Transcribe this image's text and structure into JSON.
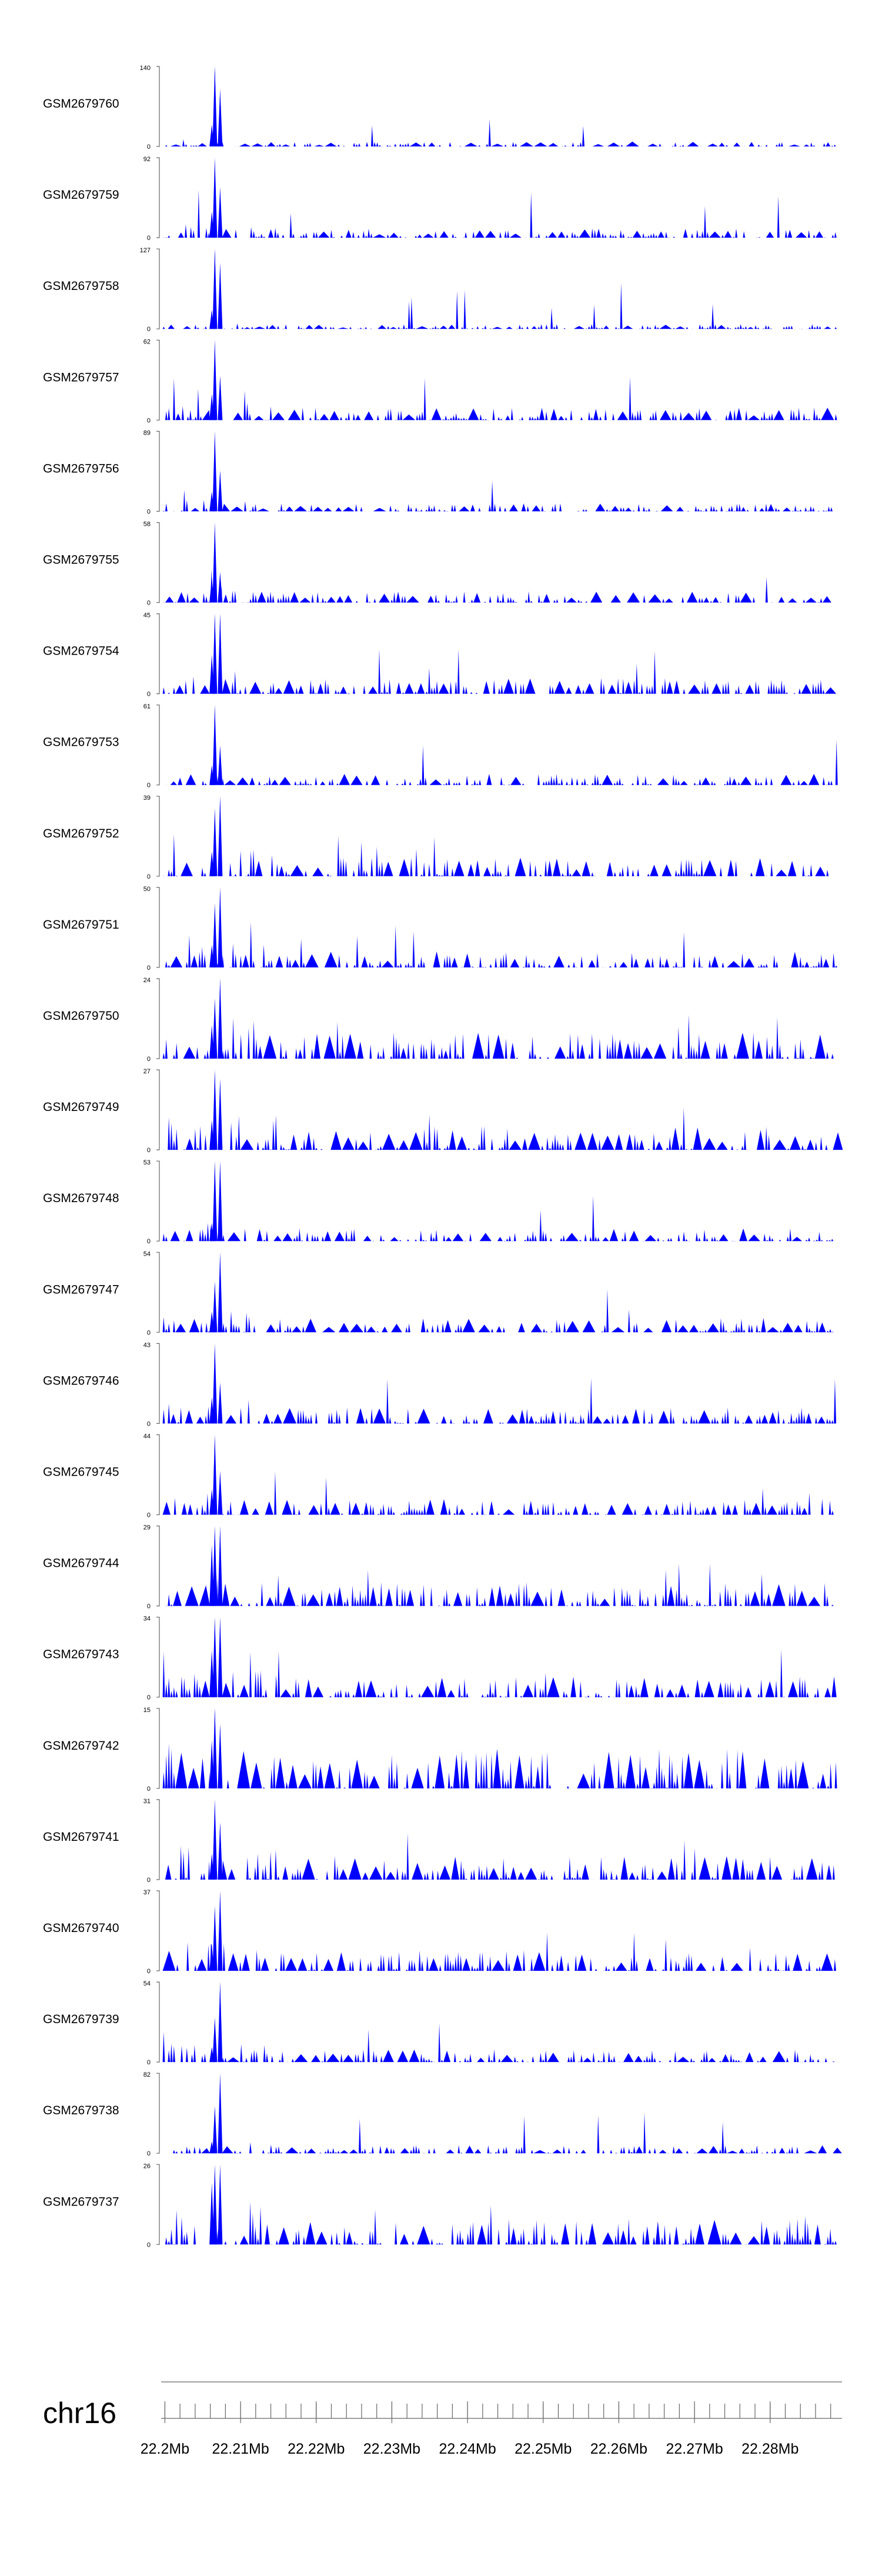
{
  "chart_data": {
    "type": "area",
    "title": "",
    "color": "#0000ff",
    "chromosome": "chr16",
    "x_range_mb": [
      22.1995,
      22.2895
    ],
    "x_ticks": [
      "22.2Mb",
      "22.21Mb",
      "22.22Mb",
      "22.23Mb",
      "22.24Mb",
      "22.25Mb",
      "22.26Mb",
      "22.27Mb",
      "22.28Mb"
    ],
    "x_tick_values_mb": [
      22.2,
      22.21,
      22.22,
      22.23,
      22.24,
      22.25,
      22.26,
      22.27,
      22.28
    ],
    "minor_tick_step_mb": 0.002,
    "peak_region_mb": [
      22.2059,
      22.2082
    ],
    "tracks": [
      {
        "name": "GSM2679760",
        "ymax": "140",
        "ymin": "0",
        "max": 140,
        "peaks": [
          {
            "pos": 22.2066,
            "value": 140
          },
          {
            "pos": 22.2073,
            "value": 100
          },
          {
            "pos": 22.2062,
            "value": 38
          }
        ],
        "bg": 0.06,
        "seed": 60
      },
      {
        "name": "GSM2679759",
        "ymax": "92",
        "ymin": "0",
        "max": 92,
        "peaks": [
          {
            "pos": 22.2066,
            "value": 92
          },
          {
            "pos": 22.2073,
            "value": 58
          },
          {
            "pos": 22.2062,
            "value": 30
          }
        ],
        "bg": 0.12,
        "seed": 59
      },
      {
        "name": "GSM2679758",
        "ymax": "127",
        "ymin": "0",
        "max": 127,
        "peaks": [
          {
            "pos": 22.2066,
            "value": 127
          },
          {
            "pos": 22.2073,
            "value": 105
          },
          {
            "pos": 22.2062,
            "value": 30
          }
        ],
        "bg": 0.06,
        "seed": 58
      },
      {
        "name": "GSM2679757",
        "ymax": "62",
        "ymin": "0",
        "max": 62,
        "peaks": [
          {
            "pos": 22.2066,
            "value": 62
          },
          {
            "pos": 22.2073,
            "value": 34
          },
          {
            "pos": 22.2062,
            "value": 20
          }
        ],
        "bg": 0.16,
        "seed": 57
      },
      {
        "name": "GSM2679756",
        "ymax": "89",
        "ymin": "0",
        "max": 89,
        "peaks": [
          {
            "pos": 22.2066,
            "value": 89
          },
          {
            "pos": 22.2073,
            "value": 45
          },
          {
            "pos": 22.2062,
            "value": 22
          }
        ],
        "bg": 0.1,
        "seed": 56
      },
      {
        "name": "GSM2679755",
        "ymax": "58",
        "ymin": "0",
        "max": 58,
        "peaks": [
          {
            "pos": 22.2066,
            "value": 58
          },
          {
            "pos": 22.2073,
            "value": 22
          },
          {
            "pos": 22.2062,
            "value": 18
          }
        ],
        "bg": 0.14,
        "seed": 55
      },
      {
        "name": "GSM2679754",
        "ymax": "45",
        "ymin": "0",
        "max": 45,
        "peaks": [
          {
            "pos": 22.2066,
            "value": 45
          },
          {
            "pos": 22.2073,
            "value": 45
          },
          {
            "pos": 22.2062,
            "value": 22
          }
        ],
        "bg": 0.2,
        "seed": 54
      },
      {
        "name": "GSM2679753",
        "ymax": "61",
        "ymin": "0",
        "max": 61,
        "peaks": [
          {
            "pos": 22.2066,
            "value": 61
          },
          {
            "pos": 22.2073,
            "value": 30
          },
          {
            "pos": 22.2062,
            "value": 15
          }
        ],
        "bg": 0.14,
        "seed": 53
      },
      {
        "name": "GSM2679752",
        "ymax": "39",
        "ymin": "0",
        "max": 39,
        "peaks": [
          {
            "pos": 22.2066,
            "value": 33
          },
          {
            "pos": 22.2073,
            "value": 39
          },
          {
            "pos": 22.2062,
            "value": 12
          }
        ],
        "bg": 0.24,
        "seed": 52
      },
      {
        "name": "GSM2679751",
        "ymax": "50",
        "ymin": "0",
        "max": 50,
        "peaks": [
          {
            "pos": 22.2066,
            "value": 40
          },
          {
            "pos": 22.2073,
            "value": 50
          },
          {
            "pos": 22.2062,
            "value": 14
          }
        ],
        "bg": 0.2,
        "seed": 51
      },
      {
        "name": "GSM2679750",
        "ymax": "24",
        "ymin": "0",
        "max": 24,
        "peaks": [
          {
            "pos": 22.2066,
            "value": 18
          },
          {
            "pos": 22.2073,
            "value": 24
          },
          {
            "pos": 22.2062,
            "value": 10
          }
        ],
        "bg": 0.34,
        "seed": 50
      },
      {
        "name": "GSM2679749",
        "ymax": "27",
        "ymin": "0",
        "max": 27,
        "peaks": [
          {
            "pos": 22.2066,
            "value": 27
          },
          {
            "pos": 22.2073,
            "value": 24
          },
          {
            "pos": 22.2062,
            "value": 10
          }
        ],
        "bg": 0.3,
        "seed": 49
      },
      {
        "name": "GSM2679748",
        "ymax": "53",
        "ymin": "0",
        "max": 53,
        "peaks": [
          {
            "pos": 22.2066,
            "value": 53
          },
          {
            "pos": 22.2073,
            "value": 53
          },
          {
            "pos": 22.2062,
            "value": 12
          }
        ],
        "bg": 0.16,
        "seed": 48
      },
      {
        "name": "GSM2679747",
        "ymax": "54",
        "ymin": "0",
        "max": 54,
        "peaks": [
          {
            "pos": 22.2066,
            "value": 34
          },
          {
            "pos": 22.2073,
            "value": 54
          },
          {
            "pos": 22.2062,
            "value": 14
          }
        ],
        "bg": 0.18,
        "seed": 47
      },
      {
        "name": "GSM2679746",
        "ymax": "43",
        "ymin": "0",
        "max": 43,
        "peaks": [
          {
            "pos": 22.2066,
            "value": 43
          },
          {
            "pos": 22.2073,
            "value": 22
          },
          {
            "pos": 22.2062,
            "value": 14
          }
        ],
        "bg": 0.2,
        "seed": 46
      },
      {
        "name": "GSM2679745",
        "ymax": "44",
        "ymin": "0",
        "max": 44,
        "peaks": [
          {
            "pos": 22.2066,
            "value": 44
          },
          {
            "pos": 22.2073,
            "value": 24
          },
          {
            "pos": 22.2062,
            "value": 14
          }
        ],
        "bg": 0.2,
        "seed": 45
      },
      {
        "name": "GSM2679744",
        "ymax": "29",
        "ymin": "0",
        "max": 29,
        "peaks": [
          {
            "pos": 22.2066,
            "value": 29
          },
          {
            "pos": 22.2073,
            "value": 29
          },
          {
            "pos": 22.2062,
            "value": 22
          }
        ],
        "bg": 0.3,
        "seed": 44
      },
      {
        "name": "GSM2679743",
        "ymax": "34",
        "ymin": "0",
        "max": 34,
        "peaks": [
          {
            "pos": 22.2066,
            "value": 34
          },
          {
            "pos": 22.2073,
            "value": 34
          },
          {
            "pos": 22.2062,
            "value": 20
          }
        ],
        "bg": 0.26,
        "seed": 43
      },
      {
        "name": "GSM2679742",
        "ymax": "15",
        "ymin": "0",
        "max": 15,
        "peaks": [
          {
            "pos": 22.2066,
            "value": 15
          },
          {
            "pos": 22.2073,
            "value": 12
          },
          {
            "pos": 22.2062,
            "value": 9
          }
        ],
        "bg": 0.5,
        "seed": 42
      },
      {
        "name": "GSM2679741",
        "ymax": "31",
        "ymin": "0",
        "max": 31,
        "peaks": [
          {
            "pos": 22.2066,
            "value": 31
          },
          {
            "pos": 22.2073,
            "value": 22
          },
          {
            "pos": 22.2062,
            "value": 10
          }
        ],
        "bg": 0.3,
        "seed": 41
      },
      {
        "name": "GSM2679740",
        "ymax": "37",
        "ymin": "0",
        "max": 37,
        "peaks": [
          {
            "pos": 22.2066,
            "value": 30
          },
          {
            "pos": 22.2073,
            "value": 37
          },
          {
            "pos": 22.2062,
            "value": 12
          }
        ],
        "bg": 0.26,
        "seed": 40
      },
      {
        "name": "GSM2679739",
        "ymax": "54",
        "ymin": "0",
        "max": 54,
        "peaks": [
          {
            "pos": 22.2066,
            "value": 30
          },
          {
            "pos": 22.2073,
            "value": 54
          },
          {
            "pos": 22.2062,
            "value": 10
          }
        ],
        "bg": 0.16,
        "seed": 39
      },
      {
        "name": "GSM2679738",
        "ymax": "82",
        "ymin": "0",
        "max": 82,
        "peaks": [
          {
            "pos": 22.2066,
            "value": 48
          },
          {
            "pos": 22.2073,
            "value": 82
          },
          {
            "pos": 22.2062,
            "value": 12
          }
        ],
        "bg": 0.1,
        "seed": 38
      },
      {
        "name": "GSM2679737",
        "ymax": "26",
        "ymin": "0",
        "max": 26,
        "peaks": [
          {
            "pos": 22.2066,
            "value": 26
          },
          {
            "pos": 22.2073,
            "value": 26
          },
          {
            "pos": 22.2062,
            "value": 20
          }
        ],
        "bg": 0.32,
        "seed": 37
      }
    ]
  }
}
